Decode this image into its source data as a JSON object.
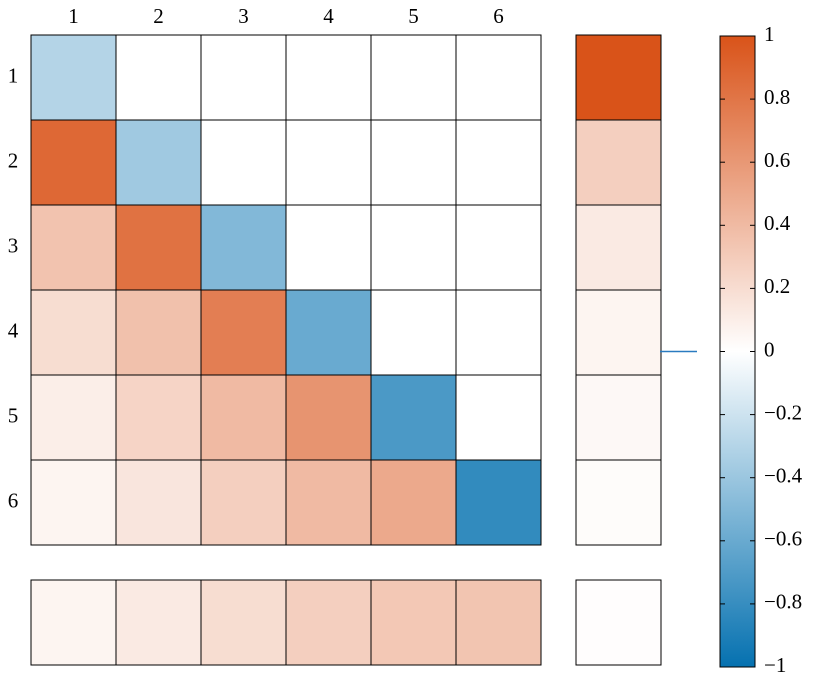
{
  "chart_data": {
    "type": "heatmap",
    "categories": [
      "1",
      "2",
      "3",
      "4",
      "5",
      "6"
    ],
    "rows": [
      "1",
      "2",
      "3",
      "4",
      "5",
      "6"
    ],
    "values": [
      [
        -0.3,
        null,
        null,
        null,
        null,
        null
      ],
      [
        0.88,
        -0.38,
        null,
        null,
        null,
        null
      ],
      [
        0.35,
        0.82,
        -0.5,
        null,
        null,
        null
      ],
      [
        0.2,
        0.36,
        0.75,
        -0.6,
        null,
        null
      ],
      [
        0.1,
        0.25,
        0.4,
        0.62,
        -0.72,
        null
      ],
      [
        0.06,
        0.15,
        0.28,
        0.4,
        0.5,
        -0.82
      ]
    ],
    "row_summary": [
      1.0,
      0.28,
      0.12,
      0.06,
      0.04,
      0.02
    ],
    "col_summary": [
      0.06,
      0.12,
      0.2,
      0.28,
      0.32,
      0.34
    ],
    "total": 0.01,
    "colormap": [
      "#0571b0",
      "#ffffff",
      "#d95319"
    ],
    "clim": [
      -1,
      1
    ],
    "cticks": [
      1,
      0.8,
      0.6,
      0.4,
      0.2,
      0,
      {
        "value": -0.2,
        "label": "−0.2"
      },
      {
        "value": -0.4,
        "label": "−0.4"
      },
      {
        "value": -0.6,
        "label": "−0.6"
      },
      {
        "value": -0.8,
        "label": "−0.8"
      },
      {
        "value": -1,
        "label": "−1"
      }
    ],
    "marker": 0,
    "marker_color": "#2a7bc0"
  }
}
